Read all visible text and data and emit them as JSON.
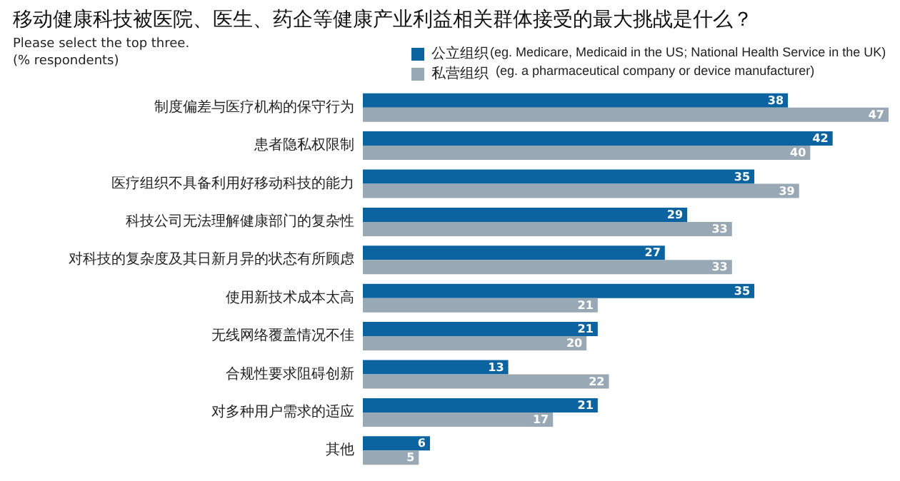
{
  "chart_data": {
    "type": "bar",
    "orientation": "horizontal",
    "title": "移动健康科技被医院、医生、药企等健康产业利益相关群体接受的最大挑战是什么？",
    "subtitle": "Please select the top three.\n(% respondents)",
    "categories": [
      "制度偏差与医疗机构的保守行为",
      "患者隐私权限制",
      "医疗组织不具备利用好移动科技的能力",
      "科技公司无法理解健康部门的复杂性",
      "对科技的复杂度及其日新月异的状态有所顾虑",
      "使用新技术成本太高",
      "无线网络覆盖情况不佳",
      "合规性要求阻碍创新",
      "对多种用户需求的适应",
      "其他"
    ],
    "series": [
      {
        "name": "公立组织",
        "color": "#0b64a0",
        "values": [
          38,
          42,
          35,
          29,
          27,
          35,
          21,
          13,
          21,
          6
        ]
      },
      {
        "name": "私营组织",
        "color": "#98a8b4",
        "values": [
          47,
          40,
          39,
          33,
          33,
          21,
          20,
          22,
          17,
          5
        ]
      }
    ],
    "annotations": [
      "(eg. Medicare, Medicaid in the US; National Health Service in the UK)",
      "(eg. a pharmaceutical company or device manufacturer)"
    ],
    "data_labels": true,
    "legend": "top"
  }
}
